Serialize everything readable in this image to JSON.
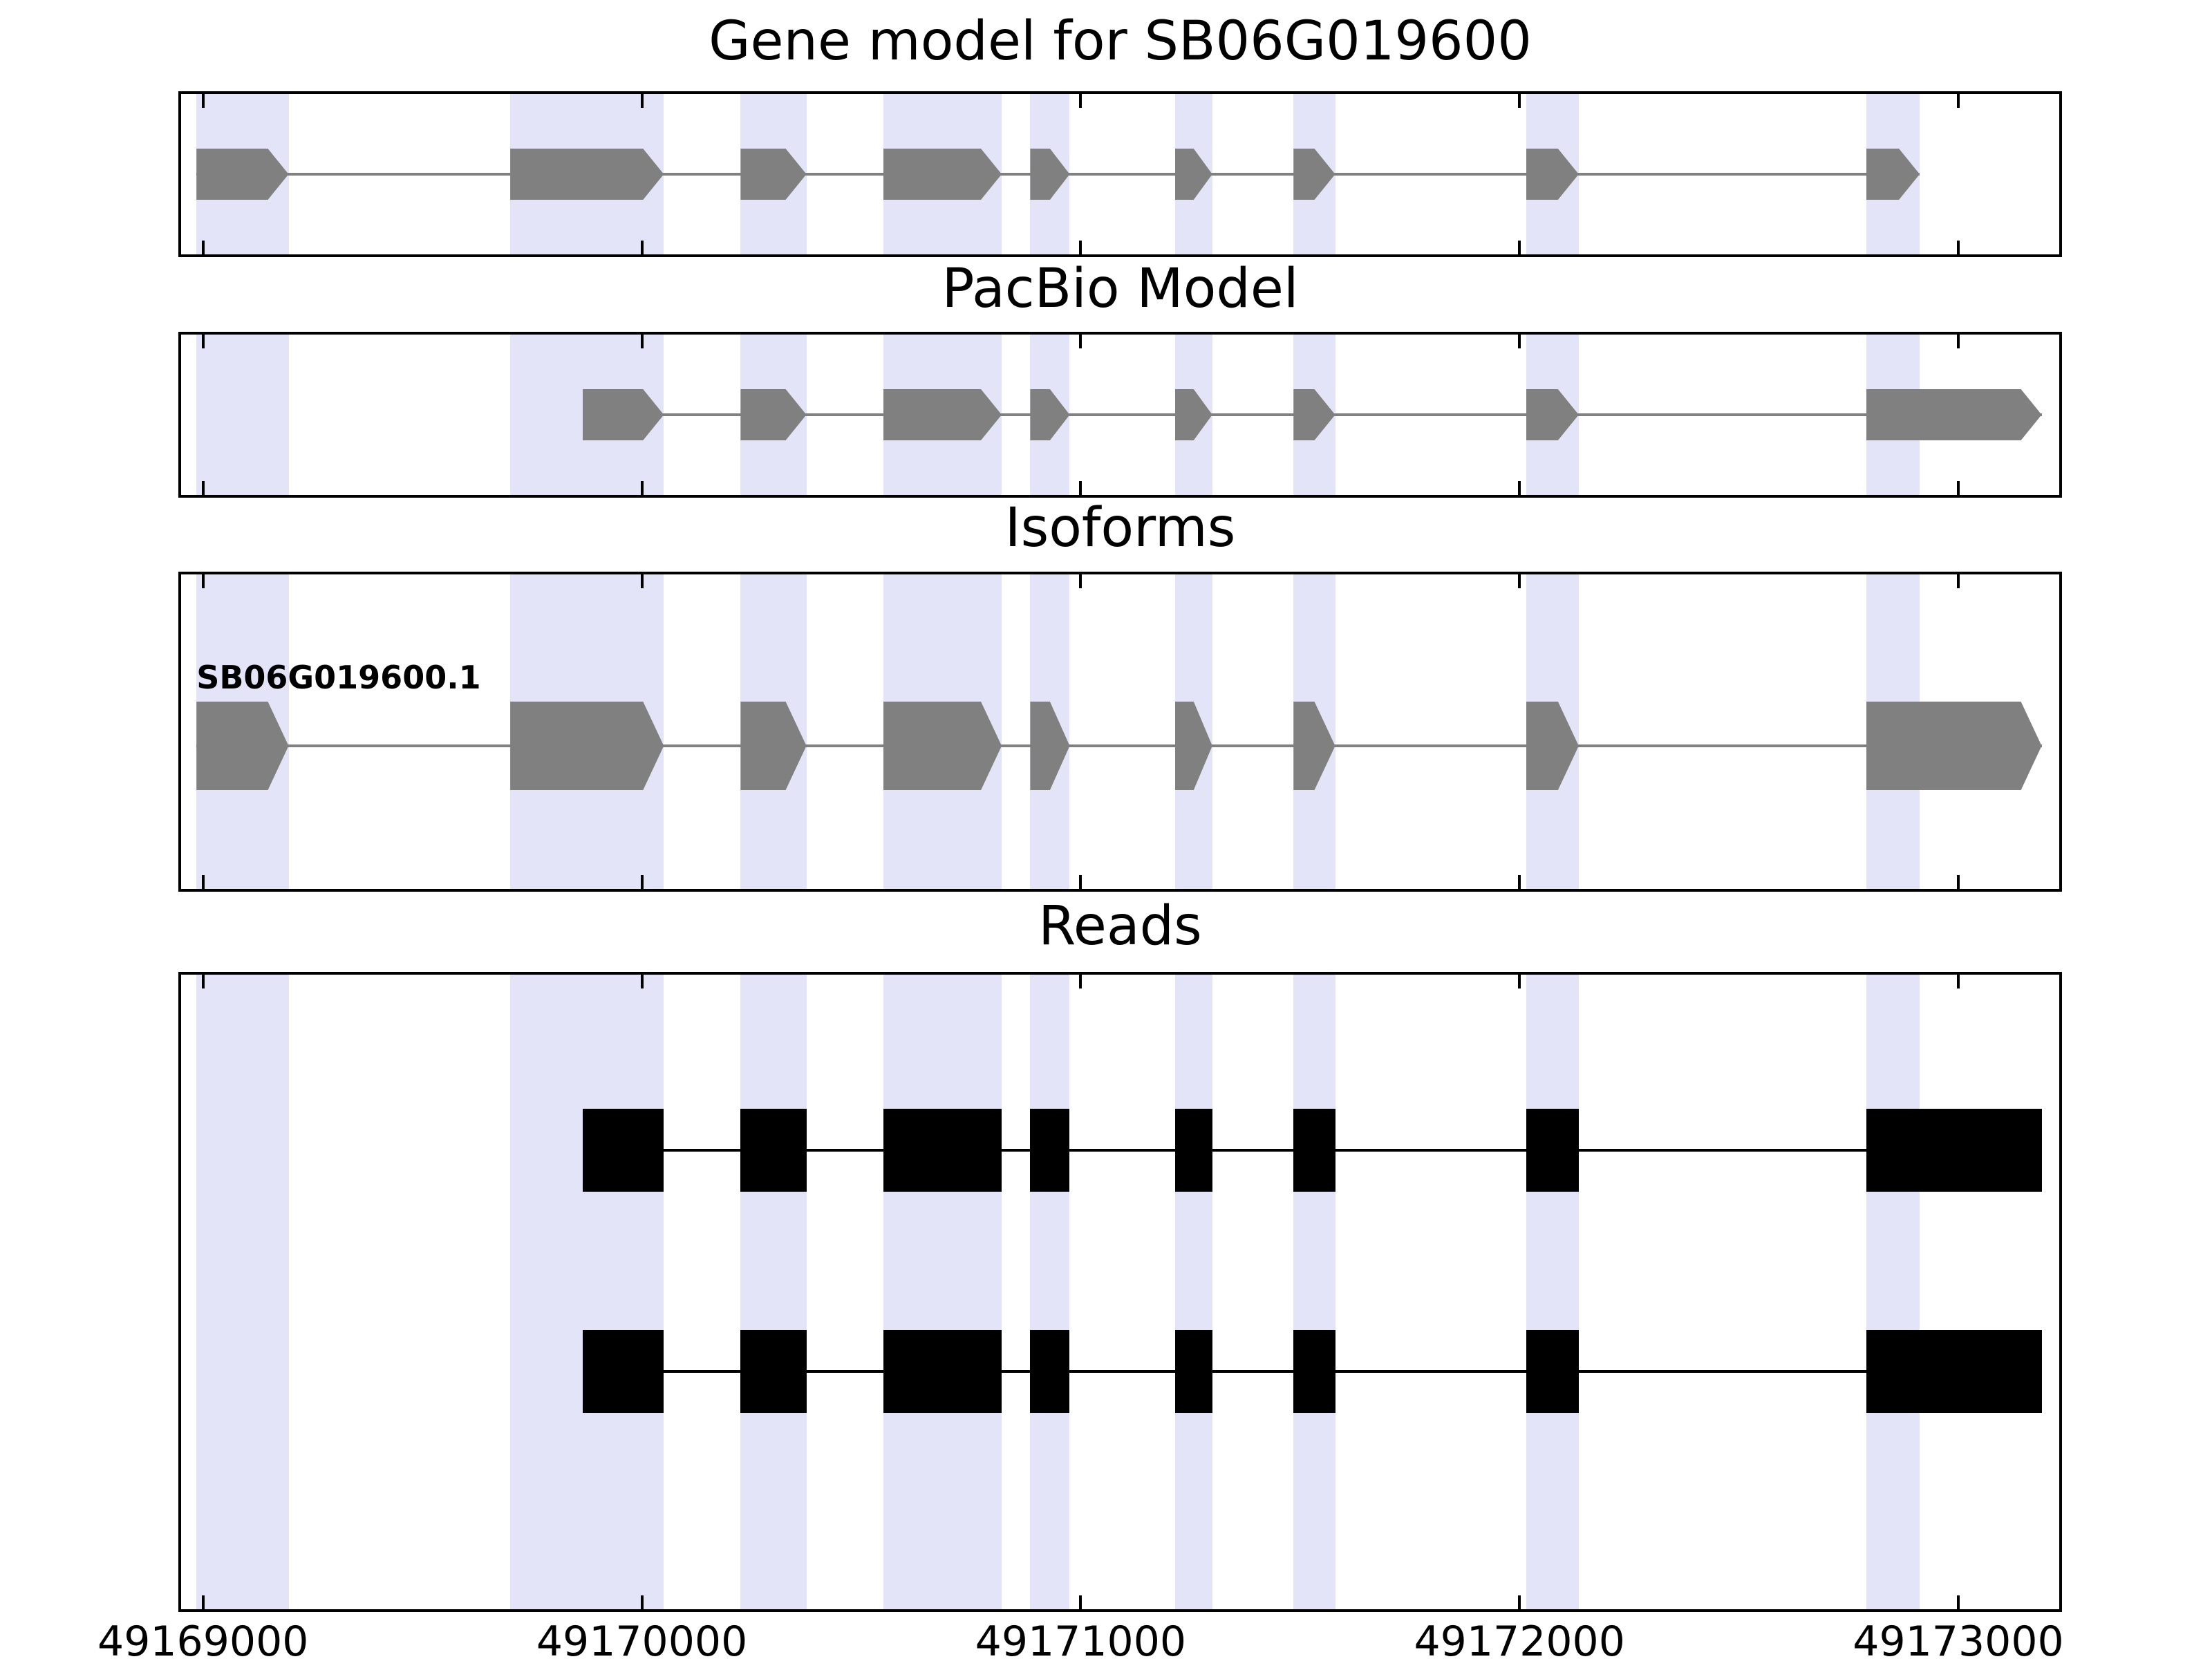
{
  "chart_data": {
    "type": "gene-structure",
    "axis": {
      "min": 49168950,
      "max": 49173230,
      "ticks": [
        49169000,
        49170000,
        49171000,
        49172000,
        49173000
      ],
      "tick_labels": [
        "49169000",
        "49170000",
        "49171000",
        "49172000",
        "49173000"
      ]
    },
    "colors": {
      "exon_gray": "#808080",
      "read_black": "#000000",
      "highlight_band": "#e4e4f9"
    },
    "highlight_bands": [
      [
        49168985,
        49169195
      ],
      [
        49169700,
        49170050
      ],
      [
        49170225,
        49170375
      ],
      [
        49170550,
        49170820
      ],
      [
        49170885,
        49170975
      ],
      [
        49171215,
        49171300
      ],
      [
        49171485,
        49171580
      ],
      [
        49172015,
        49172135
      ],
      [
        49172790,
        49172912
      ]
    ],
    "panels": [
      {
        "title": "Gene model for SB06G019600",
        "style": "transcript",
        "color": "#808080",
        "rows": [
          {
            "label": "",
            "exons": [
              [
                49168985,
                49169195
              ],
              [
                49169700,
                49170050
              ],
              [
                49170225,
                49170375
              ],
              [
                49170550,
                49170820
              ],
              [
                49170885,
                49170975
              ],
              [
                49171215,
                49171300
              ],
              [
                49171485,
                49171580
              ],
              [
                49172015,
                49172135
              ],
              [
                49172790,
                49172912
              ]
            ]
          }
        ]
      },
      {
        "title": "PacBio Model",
        "style": "transcript",
        "color": "#808080",
        "rows": [
          {
            "label": "",
            "exons": [
              [
                49169865,
                49170050
              ],
              [
                49170225,
                49170375
              ],
              [
                49170550,
                49170820
              ],
              [
                49170885,
                49170975
              ],
              [
                49171215,
                49171300
              ],
              [
                49171485,
                49171580
              ],
              [
                49172015,
                49172135
              ],
              [
                49172790,
                49173190
              ]
            ]
          }
        ]
      },
      {
        "title": "Isoforms",
        "style": "transcript",
        "color": "#808080",
        "rows": [
          {
            "label": "SB06G019600.1",
            "exons": [
              [
                49168985,
                49169195
              ],
              [
                49169700,
                49170050
              ],
              [
                49170225,
                49170375
              ],
              [
                49170550,
                49170820
              ],
              [
                49170885,
                49170975
              ],
              [
                49171215,
                49171300
              ],
              [
                49171485,
                49171580
              ],
              [
                49172015,
                49172135
              ],
              [
                49172790,
                49173190
              ]
            ]
          }
        ]
      },
      {
        "title": "Reads",
        "style": "reads",
        "color": "#000000",
        "rows": [
          {
            "label": "",
            "exons": [
              [
                49169865,
                49170050
              ],
              [
                49170225,
                49170375
              ],
              [
                49170550,
                49170820
              ],
              [
                49170885,
                49170975
              ],
              [
                49171215,
                49171300
              ],
              [
                49171485,
                49171580
              ],
              [
                49172015,
                49172135
              ],
              [
                49172790,
                49173190
              ]
            ]
          },
          {
            "label": "",
            "exons": [
              [
                49169865,
                49170050
              ],
              [
                49170225,
                49170375
              ],
              [
                49170550,
                49170820
              ],
              [
                49170885,
                49170975
              ],
              [
                49171215,
                49171300
              ],
              [
                49171485,
                49171580
              ],
              [
                49172015,
                49172135
              ],
              [
                49172790,
                49173190
              ]
            ]
          }
        ]
      }
    ]
  }
}
